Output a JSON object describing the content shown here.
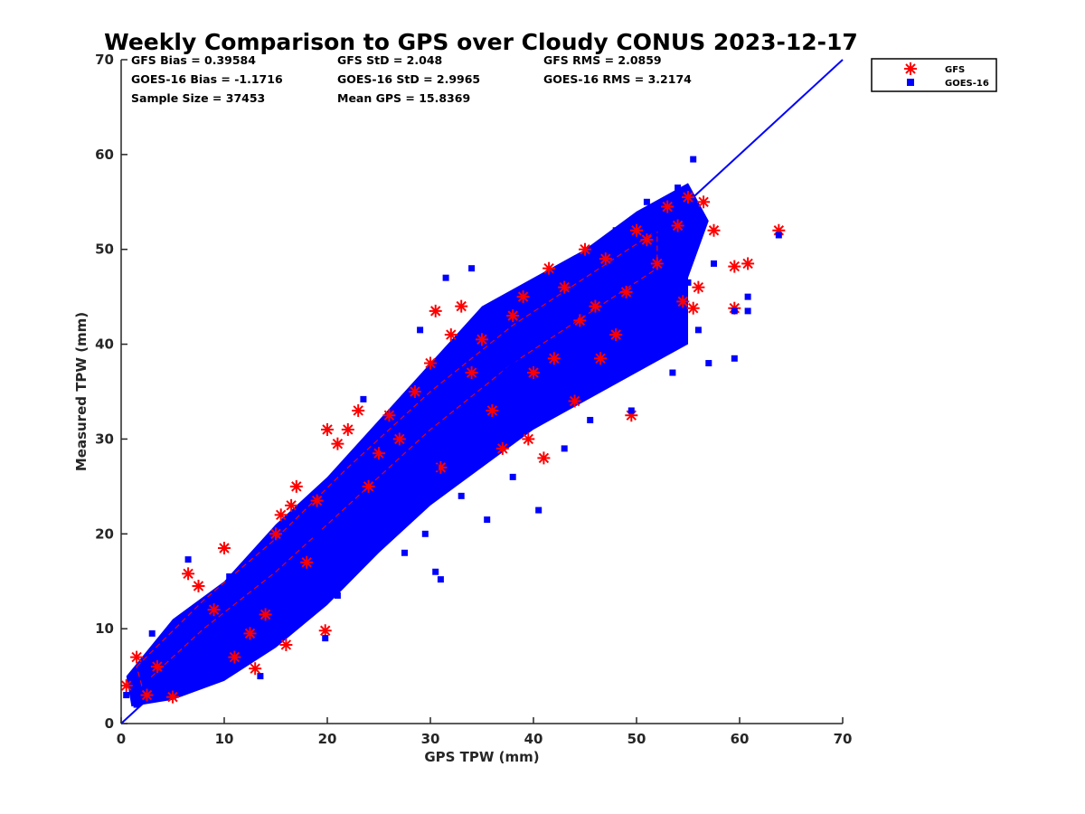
{
  "chart_data": {
    "type": "scatter",
    "title": "Weekly Comparison to GPS over Cloudy CONUS 2023-12-17",
    "xlabel": "GPS TPW (mm)",
    "ylabel": "Measured TPW (mm)",
    "xlim": [
      0,
      70
    ],
    "ylim": [
      0,
      70
    ],
    "xticks": [
      "0",
      "10",
      "20",
      "30",
      "40",
      "50",
      "60",
      "70"
    ],
    "yticks": [
      "0",
      "10",
      "20",
      "30",
      "40",
      "50",
      "60",
      "70"
    ],
    "grid": false,
    "legend_position": "outside-top-right",
    "stats": [
      [
        "GFS Bias = 0.39584",
        "GFS StD = 2.048",
        "GFS RMS = 2.0859"
      ],
      [
        "GOES-16 Bias = -1.1716",
        "GOES-16 StD = 2.9965",
        "GOES-16 RMS = 3.2174"
      ],
      [
        "Sample Size = 37453",
        "Mean GPS = 15.8369"
      ]
    ],
    "reference_line": {
      "x": [
        0,
        70
      ],
      "y": [
        0,
        70
      ],
      "color": "#0000ff"
    },
    "series": [
      {
        "name": "GFS",
        "marker": "asterisk",
        "color": "#ff0000",
        "points": [
          [
            0.5,
            4.0
          ],
          [
            1.5,
            7.0
          ],
          [
            2.5,
            3.0
          ],
          [
            3.5,
            6.0
          ],
          [
            5.0,
            2.8
          ],
          [
            6.5,
            15.8
          ],
          [
            7.5,
            14.5
          ],
          [
            9.0,
            12.0
          ],
          [
            10.0,
            18.5
          ],
          [
            11.0,
            7.0
          ],
          [
            12.5,
            9.5
          ],
          [
            13.0,
            5.8
          ],
          [
            14.0,
            11.5
          ],
          [
            15.0,
            20.0
          ],
          [
            15.5,
            22.0
          ],
          [
            16.0,
            8.3
          ],
          [
            16.5,
            23.0
          ],
          [
            17.0,
            25.0
          ],
          [
            18.0,
            17.0
          ],
          [
            19.0,
            23.5
          ],
          [
            19.8,
            9.8
          ],
          [
            20.0,
            31.0
          ],
          [
            21.0,
            29.5
          ],
          [
            22.0,
            31.0
          ],
          [
            23.0,
            33.0
          ],
          [
            24.0,
            25.0
          ],
          [
            25.0,
            28.5
          ],
          [
            26.0,
            32.5
          ],
          [
            27.0,
            30.0
          ],
          [
            28.5,
            35.0
          ],
          [
            30.0,
            38.0
          ],
          [
            30.5,
            43.5
          ],
          [
            31.0,
            27.0
          ],
          [
            32.0,
            41.0
          ],
          [
            33.0,
            44.0
          ],
          [
            34.0,
            37.0
          ],
          [
            35.0,
            40.5
          ],
          [
            36.0,
            33.0
          ],
          [
            37.0,
            29.0
          ],
          [
            38.0,
            43.0
          ],
          [
            39.0,
            45.0
          ],
          [
            39.5,
            30.0
          ],
          [
            40.0,
            37.0
          ],
          [
            41.0,
            28.0
          ],
          [
            41.5,
            48.0
          ],
          [
            42.0,
            38.5
          ],
          [
            43.0,
            46.0
          ],
          [
            44.0,
            34.0
          ],
          [
            44.5,
            42.5
          ],
          [
            45.0,
            50.0
          ],
          [
            46.0,
            44.0
          ],
          [
            46.5,
            38.5
          ],
          [
            47.0,
            49.0
          ],
          [
            48.0,
            41.0
          ],
          [
            49.0,
            45.5
          ],
          [
            49.5,
            32.5
          ],
          [
            50.0,
            52.0
          ],
          [
            51.0,
            51.0
          ],
          [
            52.0,
            48.5
          ],
          [
            53.0,
            54.5
          ],
          [
            54.0,
            52.5
          ],
          [
            54.5,
            44.5
          ],
          [
            55.0,
            55.5
          ],
          [
            55.5,
            43.8
          ],
          [
            56.0,
            46.0
          ],
          [
            56.5,
            55.0
          ],
          [
            57.5,
            52.0
          ],
          [
            59.5,
            48.2
          ],
          [
            59.5,
            43.8
          ],
          [
            60.8,
            48.5
          ],
          [
            63.8,
            52.0
          ]
        ]
      },
      {
        "name": "GOES-16",
        "marker": "square",
        "color": "#0000ff",
        "points": [
          [
            0.5,
            3.0
          ],
          [
            1.5,
            2.0
          ],
          [
            2.5,
            4.5
          ],
          [
            3.0,
            9.5
          ],
          [
            4.0,
            3.5
          ],
          [
            5.5,
            8.5
          ],
          [
            6.5,
            17.3
          ],
          [
            7.0,
            6.0
          ],
          [
            8.0,
            12.0
          ],
          [
            9.5,
            10.0
          ],
          [
            10.5,
            15.5
          ],
          [
            11.5,
            9.0
          ],
          [
            12.5,
            14.5
          ],
          [
            13.5,
            5.0
          ],
          [
            14.5,
            18.0
          ],
          [
            15.0,
            12.0
          ],
          [
            16.0,
            21.0
          ],
          [
            17.0,
            16.0
          ],
          [
            18.0,
            11.5
          ],
          [
            19.0,
            20.0
          ],
          [
            19.8,
            9.0
          ],
          [
            20.5,
            22.0
          ],
          [
            21.0,
            13.5
          ],
          [
            22.5,
            25.0
          ],
          [
            23.5,
            34.2
          ],
          [
            24.5,
            19.0
          ],
          [
            25.5,
            29.0
          ],
          [
            26.5,
            23.5
          ],
          [
            27.5,
            18.0
          ],
          [
            28.5,
            33.0
          ],
          [
            29.0,
            41.5
          ],
          [
            29.5,
            20.0
          ],
          [
            30.5,
            27.0
          ],
          [
            30.5,
            16.0
          ],
          [
            31.0,
            15.2
          ],
          [
            31.5,
            47.0
          ],
          [
            32.0,
            36.0
          ],
          [
            33.0,
            24.0
          ],
          [
            33.5,
            39.0
          ],
          [
            34.0,
            48.0
          ],
          [
            35.0,
            30.0
          ],
          [
            35.5,
            21.5
          ],
          [
            36.0,
            43.5
          ],
          [
            37.0,
            33.5
          ],
          [
            38.0,
            26.0
          ],
          [
            39.0,
            40.0
          ],
          [
            40.0,
            31.5
          ],
          [
            40.5,
            22.5
          ],
          [
            41.0,
            46.0
          ],
          [
            42.0,
            35.0
          ],
          [
            43.0,
            29.0
          ],
          [
            44.0,
            43.0
          ],
          [
            45.0,
            36.0
          ],
          [
            45.5,
            32.0
          ],
          [
            46.0,
            48.5
          ],
          [
            47.0,
            40.0
          ],
          [
            48.0,
            52.0
          ],
          [
            49.0,
            38.0
          ],
          [
            49.5,
            33.0
          ],
          [
            50.0,
            47.0
          ],
          [
            51.0,
            55.0
          ],
          [
            52.0,
            43.0
          ],
          [
            53.0,
            50.0
          ],
          [
            53.5,
            37.0
          ],
          [
            54.0,
            56.5
          ],
          [
            55.0,
            46.5
          ],
          [
            55.5,
            59.5
          ],
          [
            56.0,
            41.5
          ],
          [
            56.5,
            53.0
          ],
          [
            57.0,
            38.0
          ],
          [
            57.5,
            48.5
          ],
          [
            59.5,
            38.5
          ],
          [
            59.5,
            43.5
          ],
          [
            60.8,
            45.0
          ],
          [
            60.8,
            43.5
          ],
          [
            63.8,
            51.5
          ]
        ]
      }
    ]
  }
}
